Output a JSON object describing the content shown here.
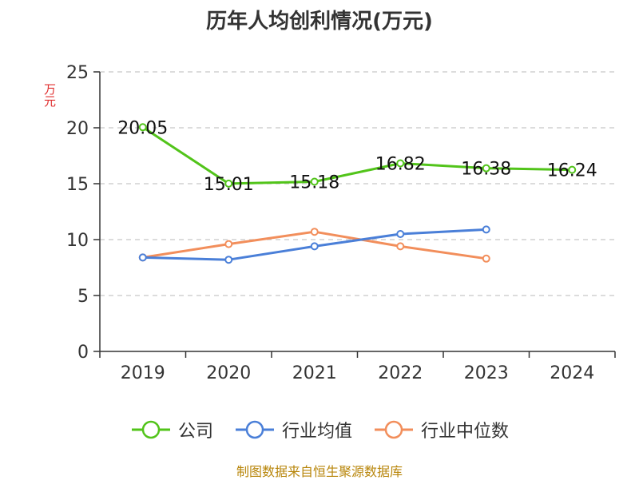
{
  "chart_data": {
    "type": "line",
    "title": "历年人均创利情况(万元)",
    "ylabel": "万元",
    "categories": [
      "2019",
      "2020",
      "2021",
      "2022",
      "2023",
      "2024"
    ],
    "ylim": [
      0,
      25
    ],
    "yticks": [
      "0",
      "5",
      "10",
      "15",
      "20",
      "25"
    ],
    "grid": true,
    "legend_position": "bottom",
    "series": [
      {
        "name": "公司",
        "color": "#52c41a",
        "values": [
          20.05,
          15.01,
          15.18,
          16.82,
          16.38,
          16.24
        ],
        "labels": [
          "20.05",
          "15.01",
          "15.18",
          "16.82",
          "16.38",
          "16.24"
        ]
      },
      {
        "name": "行业均值",
        "color": "#4a7fd8",
        "values": [
          8.4,
          8.2,
          9.4,
          10.5,
          10.9,
          null
        ]
      },
      {
        "name": "行业中位数",
        "color": "#f28e5b",
        "values": [
          8.4,
          9.6,
          10.7,
          9.4,
          8.3,
          null
        ]
      }
    ],
    "source": "制图数据来自恒生聚源数据库",
    "ylabel_color": "#e03030"
  }
}
